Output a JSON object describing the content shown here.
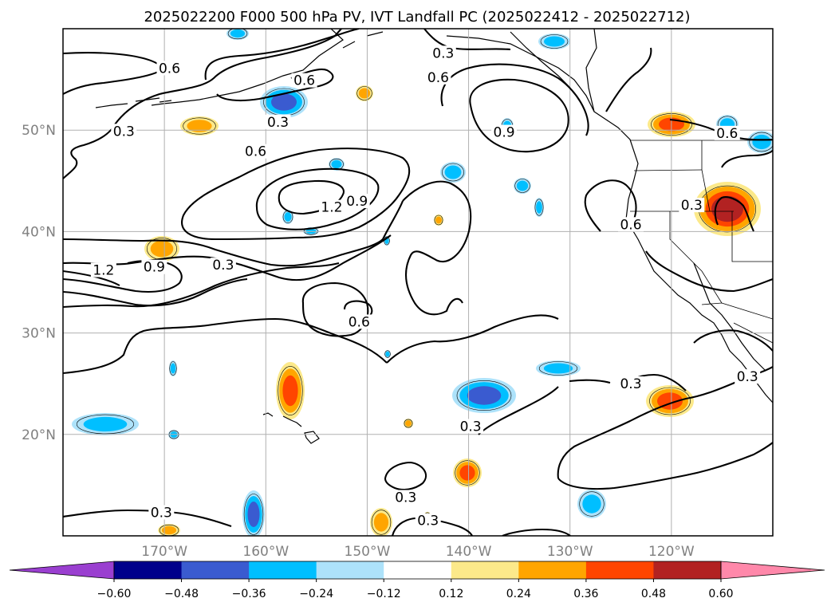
{
  "title": "2025022200 F000 500 hPa PV, IVT Landfall PC (2025022412 - 2025022712)",
  "map": {
    "lon_range": [
      180,
      110
    ],
    "lat_range": [
      10,
      60
    ],
    "lat_ticks": [
      {
        "value": 20,
        "label": "20°N"
      },
      {
        "value": 30,
        "label": "30°N"
      },
      {
        "value": 40,
        "label": "40°N"
      },
      {
        "value": 50,
        "label": "50°N"
      }
    ],
    "lon_ticks": [
      {
        "value": 170,
        "label": "170°W"
      },
      {
        "value": 160,
        "label": "160°W"
      },
      {
        "value": 150,
        "label": "150°W"
      },
      {
        "value": 140,
        "label": "140°W"
      },
      {
        "value": 130,
        "label": "130°W"
      },
      {
        "value": 120,
        "label": "120°W"
      }
    ],
    "grid": true
  },
  "colorbar": {
    "levels": [
      "−0.60",
      "−0.48",
      "−0.36",
      "−0.24",
      "−0.12",
      "0.12",
      "0.24",
      "0.36",
      "0.48",
      "0.60"
    ],
    "colors": [
      "#9a3fd0",
      "#00008b",
      "#3a5bd0",
      "#00bfff",
      "#ade2fa",
      "#ffffff",
      "#fce98a",
      "#ffa500",
      "#ff4500",
      "#b22222",
      "#ff88aa"
    ]
  },
  "contour_labels": [
    {
      "text": "0.6",
      "lon": 169.5,
      "lat": 55.8
    },
    {
      "text": "0.3",
      "lon": 174,
      "lat": 49.6
    },
    {
      "text": "0.6",
      "lon": 156.2,
      "lat": 54.6
    },
    {
      "text": "0.3",
      "lon": 158.8,
      "lat": 50.5
    },
    {
      "text": "0.3",
      "lon": 142.5,
      "lat": 57.3
    },
    {
      "text": "0.6",
      "lon": 143,
      "lat": 54.9
    },
    {
      "text": "0.9",
      "lon": 136.5,
      "lat": 49.5
    },
    {
      "text": "0.6",
      "lon": 114.5,
      "lat": 49.4
    },
    {
      "text": "0.6",
      "lon": 161,
      "lat": 47.6
    },
    {
      "text": "1.2",
      "lon": 153.5,
      "lat": 42.1
    },
    {
      "text": "0.9",
      "lon": 151,
      "lat": 42.7
    },
    {
      "text": "0.3",
      "lon": 118,
      "lat": 42.3
    },
    {
      "text": "0.6",
      "lon": 124,
      "lat": 40.4
    },
    {
      "text": "1.2",
      "lon": 176,
      "lat": 35.9
    },
    {
      "text": "0.9",
      "lon": 171,
      "lat": 36.2
    },
    {
      "text": "0.3",
      "lon": 164.2,
      "lat": 36.4
    },
    {
      "text": "0.6",
      "lon": 150.8,
      "lat": 30.8
    },
    {
      "text": "0.3",
      "lon": 124,
      "lat": 24.7
    },
    {
      "text": "0.3",
      "lon": 112.5,
      "lat": 25.4
    },
    {
      "text": "0.3",
      "lon": 139.8,
      "lat": 20.5
    },
    {
      "text": "0.3",
      "lon": 146.2,
      "lat": 13.5
    },
    {
      "text": "0.3",
      "lon": 144,
      "lat": 11.2
    },
    {
      "text": "0.3",
      "lon": 170.3,
      "lat": 12
    }
  ]
}
